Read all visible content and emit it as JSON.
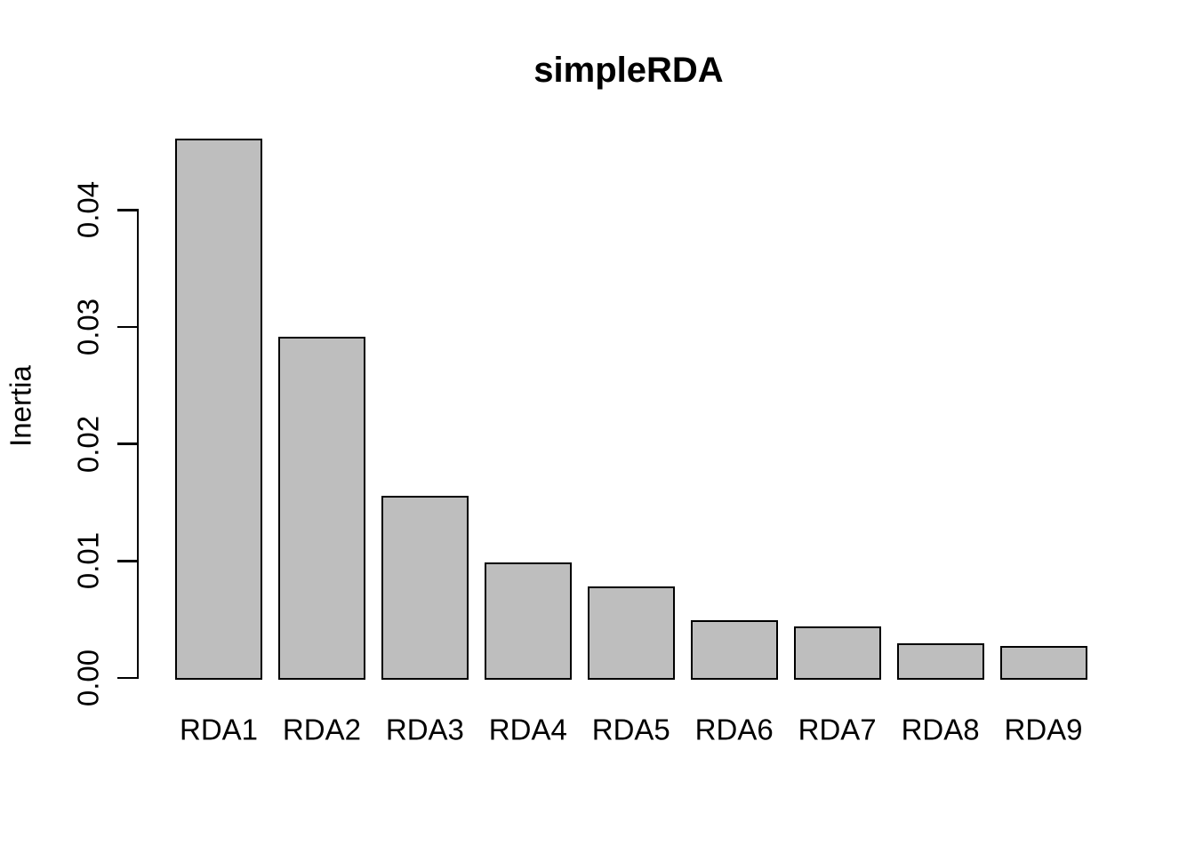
{
  "chart_data": {
    "type": "bar",
    "title": "simpleRDA",
    "xlabel": "",
    "ylabel": "Inertia",
    "categories": [
      "RDA1",
      "RDA2",
      "RDA3",
      "RDA4",
      "RDA5",
      "RDA6",
      "RDA7",
      "RDA8",
      "RDA9"
    ],
    "values": [
      0.0461,
      0.0292,
      0.0156,
      0.0099,
      0.0078,
      0.0049,
      0.0044,
      0.003,
      0.0027
    ],
    "ytick_labels": [
      "0.00",
      "0.01",
      "0.02",
      "0.03",
      "0.04"
    ],
    "ytick_values": [
      0,
      0.01,
      0.02,
      0.03,
      0.04
    ],
    "ylim": [
      0,
      0.0461
    ],
    "grid": false,
    "legend": null,
    "colors": {
      "bar_fill": "#bebebe",
      "bar_border": "#000000",
      "axis": "#000000",
      "text": "#000000",
      "background": "#ffffff"
    }
  }
}
